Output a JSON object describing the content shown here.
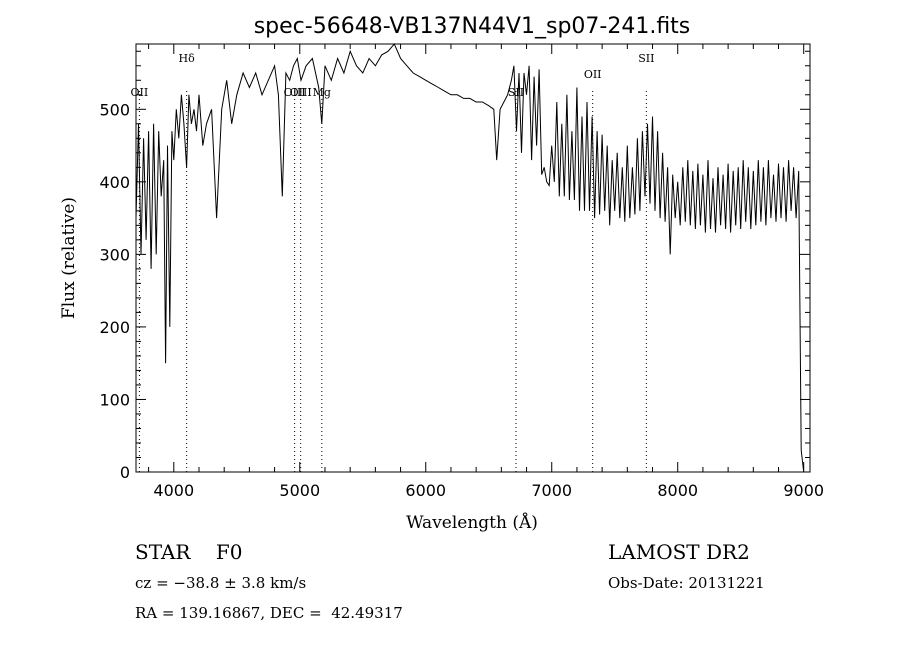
{
  "chart_data": {
    "type": "line",
    "title": "spec-56648-VB137N44V1_sp07-241.fits",
    "xlabel": "Wavelength (Å)",
    "ylabel": "Flux (relative)",
    "xlim": [
      3700,
      9050
    ],
    "ylim": [
      0,
      590
    ],
    "x_ticks": [
      4000,
      5000,
      6000,
      7000,
      8000,
      9000
    ],
    "y_ticks": [
      0,
      100,
      200,
      300,
      400,
      500
    ],
    "grid": false,
    "line_color": "#000000",
    "marker_color": "#000000",
    "line_markers": [
      {
        "label": "OII",
        "x": 3727
      },
      {
        "label": "Hδ",
        "x": 4102
      },
      {
        "label": "OIII",
        "x": 4959
      },
      {
        "label": "OIII",
        "x": 5007
      },
      {
        "label": "Mg",
        "x": 5175
      },
      {
        "label": "SII",
        "x": 6716
      },
      {
        "label": "OII",
        "x": 7325
      },
      {
        "label": "SII",
        "x": 7751
      }
    ],
    "series": [
      {
        "x": [
          3700,
          3720,
          3740,
          3760,
          3780,
          3800,
          3820,
          3840,
          3860,
          3880,
          3900,
          3920,
          3935,
          3950,
          3968,
          3985,
          4000,
          4020,
          4040,
          4060,
          4080,
          4102,
          4120,
          4140,
          4160,
          4180,
          4200,
          4230,
          4260,
          4300,
          4340,
          4380,
          4420,
          4460,
          4500,
          4550,
          4600,
          4650,
          4700,
          4750,
          4800,
          4830,
          4861,
          4890,
          4920,
          4950,
          4980,
          5010,
          5050,
          5100,
          5150,
          5175,
          5200,
          5250,
          5300,
          5350,
          5400,
          5450,
          5500,
          5550,
          5600,
          5650,
          5700,
          5750,
          5800,
          5850,
          5900,
          5950,
          6000,
          6050,
          6100,
          6150,
          6200,
          6250,
          6300,
          6350,
          6400,
          6450,
          6500,
          6540,
          6563,
          6590,
          6620,
          6650,
          6680,
          6700,
          6720,
          6740,
          6760,
          6780,
          6800,
          6820,
          6840,
          6860,
          6880,
          6900,
          6920,
          6940,
          6960,
          6980,
          7000,
          7020,
          7040,
          7060,
          7080,
          7100,
          7120,
          7140,
          7160,
          7180,
          7200,
          7220,
          7240,
          7260,
          7280,
          7300,
          7320,
          7340,
          7360,
          7380,
          7400,
          7420,
          7440,
          7460,
          7480,
          7500,
          7520,
          7540,
          7560,
          7580,
          7600,
          7620,
          7640,
          7660,
          7680,
          7700,
          7720,
          7740,
          7760,
          7780,
          7800,
          7820,
          7840,
          7860,
          7880,
          7900,
          7920,
          7940,
          7960,
          7980,
          8000,
          8020,
          8040,
          8060,
          8080,
          8100,
          8120,
          8140,
          8160,
          8180,
          8200,
          8220,
          8240,
          8260,
          8280,
          8300,
          8320,
          8340,
          8360,
          8380,
          8400,
          8420,
          8440,
          8460,
          8480,
          8500,
          8520,
          8540,
          8560,
          8580,
          8600,
          8620,
          8640,
          8660,
          8680,
          8700,
          8720,
          8740,
          8760,
          8780,
          8800,
          8820,
          8840,
          8860,
          8880,
          8900,
          8920,
          8940,
          8960,
          8980,
          9000
        ],
        "y": [
          350,
          480,
          300,
          460,
          320,
          470,
          280,
          480,
          300,
          470,
          380,
          430,
          150,
          450,
          200,
          470,
          430,
          500,
          460,
          520,
          480,
          420,
          520,
          480,
          500,
          470,
          520,
          450,
          480,
          500,
          350,
          500,
          540,
          480,
          520,
          550,
          530,
          550,
          520,
          540,
          560,
          520,
          380,
          550,
          540,
          560,
          570,
          540,
          560,
          570,
          530,
          480,
          560,
          540,
          570,
          550,
          580,
          560,
          550,
          570,
          560,
          575,
          580,
          590,
          570,
          560,
          550,
          545,
          540,
          535,
          530,
          525,
          520,
          520,
          515,
          515,
          510,
          510,
          505,
          500,
          430,
          500,
          510,
          520,
          540,
          560,
          470,
          550,
          440,
          550,
          520,
          560,
          430,
          545,
          450,
          555,
          410,
          420,
          400,
          395,
          450,
          400,
          510,
          380,
          480,
          380,
          520,
          375,
          470,
          375,
          530,
          360,
          490,
          360,
          510,
          360,
          490,
          350,
          470,
          355,
          465,
          360,
          450,
          340,
          430,
          360,
          440,
          350,
          420,
          345,
          450,
          350,
          420,
          355,
          460,
          360,
          470,
          380,
          480,
          370,
          490,
          360,
          470,
          350,
          440,
          345,
          420,
          300,
          410,
          350,
          400,
          340,
          420,
          345,
          430,
          340,
          415,
          335,
          425,
          340,
          410,
          330,
          430,
          335,
          405,
          330,
          420,
          340,
          410,
          335,
          425,
          330,
          415,
          340,
          420,
          335,
          430,
          345,
          420,
          335,
          415,
          340,
          430,
          345,
          420,
          340,
          430,
          350,
          410,
          345,
          425,
          350,
          420,
          345,
          430,
          360,
          420,
          350,
          415,
          30,
          0
        ]
      }
    ]
  },
  "footer": {
    "left_line1": "STAR    F0",
    "left_line2": "cz = −38.8 ± 3.8 km/s",
    "left_line3": "RA = 139.16867, DEC =  42.49317",
    "right_line1": "LAMOST DR2",
    "right_line2": "Obs-Date: 20131221"
  }
}
